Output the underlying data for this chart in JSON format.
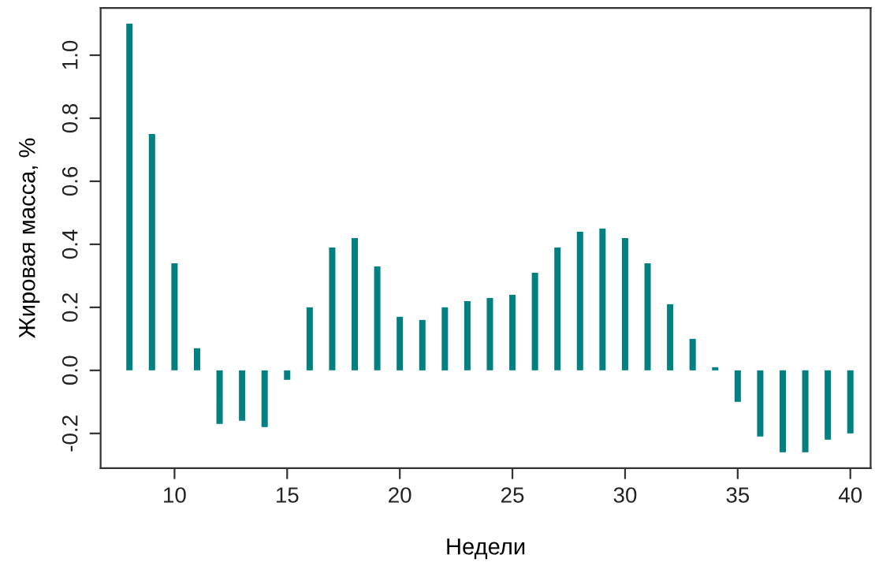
{
  "chart_data": {
    "type": "bar",
    "xlabel": "Недели",
    "ylabel": "Жировая масса, %",
    "x": [
      8,
      9,
      10,
      11,
      12,
      13,
      14,
      15,
      16,
      17,
      18,
      19,
      20,
      21,
      22,
      23,
      24,
      25,
      26,
      27,
      28,
      29,
      30,
      31,
      32,
      33,
      34,
      35,
      36,
      37,
      38,
      39,
      40
    ],
    "values": [
      1.1,
      0.75,
      0.34,
      0.07,
      -0.17,
      -0.16,
      -0.18,
      -0.03,
      0.2,
      0.39,
      0.42,
      0.33,
      0.17,
      0.16,
      0.2,
      0.22,
      0.23,
      0.24,
      0.31,
      0.39,
      0.44,
      0.45,
      0.42,
      0.34,
      0.21,
      0.1,
      0.01,
      -0.1,
      -0.21,
      -0.26,
      -0.26,
      -0.22,
      -0.2
    ],
    "color": "#008080",
    "xlim": [
      6.72,
      40.9
    ],
    "ylim": [
      -0.31,
      1.15
    ],
    "xticks": [
      10,
      15,
      20,
      25,
      30,
      35,
      40
    ],
    "yticks": [
      -0.2,
      {
        "value": 0,
        "label": "0.0"
      },
      0.2,
      0.4,
      0.6,
      0.8,
      {
        "value": 1,
        "label": "1.0"
      }
    ],
    "grid": false
  }
}
